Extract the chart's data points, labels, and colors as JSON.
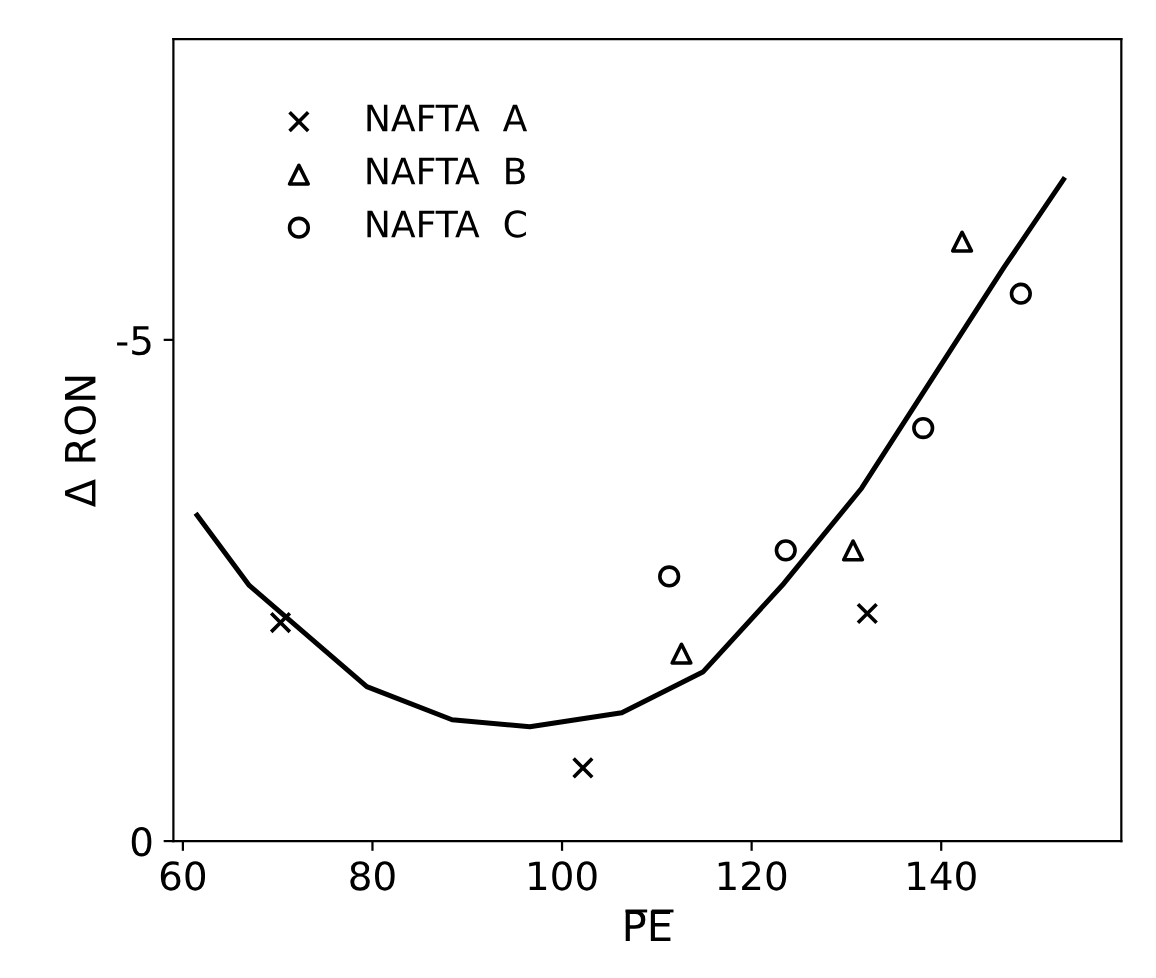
{
  "chart_data": {
    "type": "scatter",
    "xlabel": "P̅E̅",
    "ylabel": "Δ RON",
    "xlim": [
      59,
      159
    ],
    "ylim": [
      0,
      -8
    ],
    "xticks": [
      60,
      80,
      100,
      120,
      140
    ],
    "yticks": [
      0,
      -5
    ],
    "legend": "top left",
    "grid": false,
    "series": [
      {
        "name": "NAFTA  A",
        "color": "#000000",
        "marker": "cross",
        "x": [
          70.3,
          102.2,
          132.2
        ],
        "values": [
          -2.18,
          -0.73,
          -2.27
        ]
      },
      {
        "name": "NAFTA  B",
        "color": "#000000",
        "marker": "triangle",
        "x": [
          112.6,
          130.7,
          142.2
        ],
        "values": [
          -1.87,
          -2.9,
          -5.98
        ]
      },
      {
        "name": "NAFTA  C",
        "color": "#000000",
        "marker": "circle",
        "x": [
          111.3,
          123.6,
          138.1,
          148.4
        ],
        "values": [
          -2.64,
          -2.9,
          -4.12,
          -5.46
        ]
      },
      {
        "type": "line",
        "color": "#000000",
        "marker": "none",
        "line_style": "solid",
        "x": [
          61.5,
          67.0,
          79.4,
          88.4,
          96.6,
          106.3,
          114.9,
          123.4,
          131.6,
          139.1,
          146.6,
          152.9
        ],
        "values": [
          -3.25,
          -2.55,
          -1.54,
          -1.21,
          -1.14,
          -1.28,
          -1.69,
          -2.57,
          -3.52,
          -4.62,
          -5.72,
          -6.6
        ]
      }
    ]
  }
}
